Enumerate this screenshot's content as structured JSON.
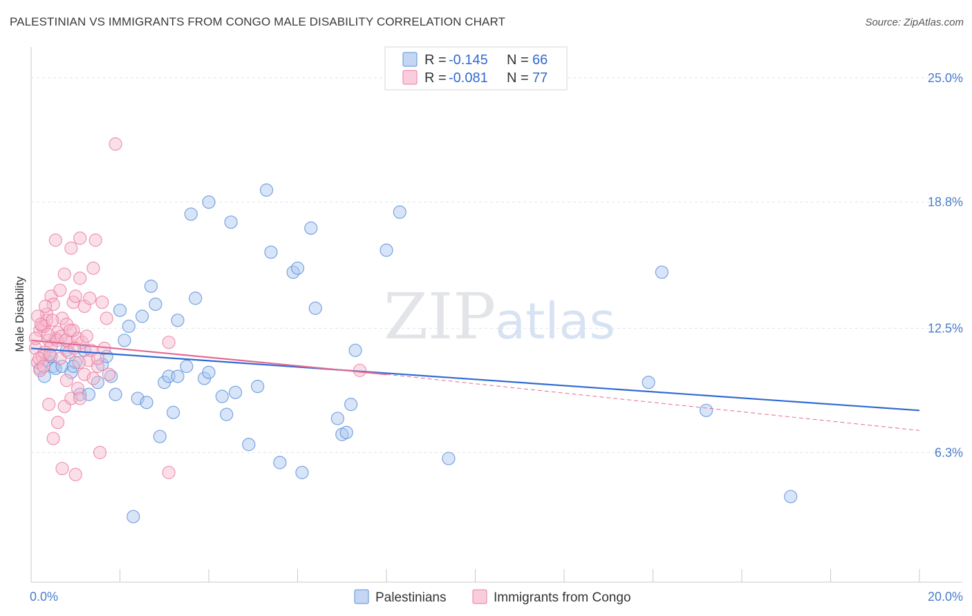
{
  "title": "PALESTINIAN VS IMMIGRANTS FROM CONGO MALE DISABILITY CORRELATION CHART",
  "source": "Source: ZipAtlas.com",
  "watermark": {
    "zip": "ZIP",
    "atlas": "atlas"
  },
  "colors": {
    "blue_fill": "#a9c6f0",
    "blue_stroke": "#5b8fd8",
    "blue_line": "#2f6ad1",
    "pink_fill": "#f6b8cc",
    "pink_stroke": "#e87ea1",
    "pink_line": "#e36a93",
    "tick_text": "#4a7cc9",
    "grid": "#dde3ea"
  },
  "chart_data": {
    "type": "scatter",
    "ylabel": "Male Disability",
    "xlim": [
      0,
      20
    ],
    "ylim": [
      0,
      26.2
    ],
    "y_ticks": [
      6.3,
      12.5,
      18.8,
      25.0
    ],
    "y_tick_labels": [
      "6.3%",
      "12.5%",
      "18.8%",
      "25.0%"
    ],
    "x_tick_labels": {
      "min": "0.0%",
      "max": "20.0%"
    },
    "legend": {
      "rows": [
        {
          "r_label": "R =",
          "r_value": "-0.145",
          "n_label": "N =",
          "n_value": "66"
        },
        {
          "r_label": "R =",
          "r_value": "-0.081",
          "n_label": "N =",
          "n_value": "77"
        }
      ]
    },
    "series": [
      {
        "name": "Palestinians",
        "color": "blue",
        "trend": {
          "x": [
            0,
            20
          ],
          "y": [
            11.5,
            8.4
          ]
        },
        "points": [
          [
            0.2,
            10.5
          ],
          [
            0.3,
            10.1
          ],
          [
            0.35,
            10.9
          ],
          [
            0.5,
            10.6
          ],
          [
            0.55,
            10.5
          ],
          [
            0.7,
            10.6
          ],
          [
            0.8,
            11.4
          ],
          [
            0.9,
            10.3
          ],
          [
            1.0,
            10.8
          ],
          [
            1.1,
            9.2
          ],
          [
            1.2,
            11.4
          ],
          [
            1.3,
            9.2
          ],
          [
            1.5,
            9.8
          ],
          [
            1.6,
            10.7
          ],
          [
            1.7,
            11.1
          ],
          [
            1.9,
            9.2
          ],
          [
            2.0,
            13.4
          ],
          [
            2.1,
            11.9
          ],
          [
            2.2,
            12.6
          ],
          [
            2.4,
            9.0
          ],
          [
            2.5,
            13.1
          ],
          [
            2.6,
            8.8
          ],
          [
            2.7,
            14.6
          ],
          [
            2.8,
            13.7
          ],
          [
            2.9,
            7.1
          ],
          [
            3.0,
            9.8
          ],
          [
            3.1,
            10.1
          ],
          [
            3.2,
            8.3
          ],
          [
            3.3,
            10.1
          ],
          [
            3.3,
            12.9
          ],
          [
            3.5,
            10.6
          ],
          [
            3.6,
            18.2
          ],
          [
            3.7,
            14.0
          ],
          [
            3.9,
            10.0
          ],
          [
            4.0,
            10.3
          ],
          [
            4.0,
            18.8
          ],
          [
            4.3,
            9.1
          ],
          [
            4.4,
            8.2
          ],
          [
            4.6,
            9.3
          ],
          [
            4.5,
            17.8
          ],
          [
            4.9,
            6.7
          ],
          [
            5.1,
            9.6
          ],
          [
            5.3,
            19.4
          ],
          [
            5.4,
            16.3
          ],
          [
            5.6,
            5.8
          ],
          [
            5.9,
            15.3
          ],
          [
            6.0,
            15.5
          ],
          [
            6.1,
            5.3
          ],
          [
            6.3,
            17.5
          ],
          [
            6.4,
            13.5
          ],
          [
            6.9,
            8.0
          ],
          [
            7.0,
            7.2
          ],
          [
            7.1,
            7.3
          ],
          [
            7.2,
            8.7
          ],
          [
            7.3,
            11.4
          ],
          [
            8.0,
            16.4
          ],
          [
            8.3,
            18.3
          ],
          [
            9.4,
            6.0
          ],
          [
            13.9,
            9.8
          ],
          [
            14.2,
            15.3
          ],
          [
            15.2,
            8.4
          ],
          [
            17.1,
            4.1
          ],
          [
            2.3,
            3.1
          ],
          [
            1.8,
            10.1
          ],
          [
            0.45,
            11.1
          ],
          [
            0.95,
            10.6
          ]
        ]
      },
      {
        "name": "Immigrants from Congo",
        "color": "pink",
        "trend": {
          "x": [
            0,
            8.0
          ],
          "y": [
            11.9,
            10.2
          ]
        },
        "trend_dashed": {
          "x": [
            8.0,
            20
          ],
          "y": [
            10.2,
            7.4
          ]
        },
        "points": [
          [
            0.1,
            11.5
          ],
          [
            0.15,
            10.8
          ],
          [
            0.2,
            12.4
          ],
          [
            0.25,
            11.1
          ],
          [
            0.3,
            12.6
          ],
          [
            0.35,
            13.2
          ],
          [
            0.4,
            11.9
          ],
          [
            0.45,
            14.1
          ],
          [
            0.5,
            13.7
          ],
          [
            0.55,
            12.0
          ],
          [
            0.6,
            12.3
          ],
          [
            0.65,
            14.4
          ],
          [
            0.7,
            13.0
          ],
          [
            0.75,
            15.2
          ],
          [
            0.8,
            12.7
          ],
          [
            0.85,
            11.8
          ],
          [
            0.9,
            16.5
          ],
          [
            0.95,
            13.8
          ],
          [
            1.0,
            14.1
          ],
          [
            1.05,
            12.0
          ],
          [
            1.1,
            15.0
          ],
          [
            1.15,
            11.8
          ],
          [
            1.2,
            13.6
          ],
          [
            1.3,
            10.9
          ],
          [
            1.35,
            11.4
          ],
          [
            1.4,
            15.5
          ],
          [
            1.45,
            16.9
          ],
          [
            1.5,
            10.6
          ],
          [
            1.6,
            13.8
          ],
          [
            1.7,
            13.0
          ],
          [
            1.75,
            10.2
          ],
          [
            0.2,
            10.4
          ],
          [
            0.3,
            11.3
          ],
          [
            0.4,
            8.7
          ],
          [
            0.5,
            7.0
          ],
          [
            0.6,
            7.8
          ],
          [
            0.7,
            5.5
          ],
          [
            0.75,
            8.6
          ],
          [
            0.9,
            9.0
          ],
          [
            1.0,
            5.2
          ],
          [
            1.05,
            9.5
          ],
          [
            1.1,
            9.0
          ],
          [
            1.2,
            10.2
          ],
          [
            1.4,
            10.0
          ],
          [
            1.55,
            6.3
          ],
          [
            1.9,
            21.7
          ],
          [
            3.1,
            11.8
          ],
          [
            3.1,
            5.3
          ],
          [
            7.4,
            10.4
          ],
          [
            0.55,
            16.9
          ],
          [
            1.1,
            17.0
          ],
          [
            0.25,
            12.6
          ],
          [
            0.35,
            12.9
          ],
          [
            0.45,
            11.6
          ],
          [
            0.65,
            11.0
          ],
          [
            0.8,
            9.9
          ],
          [
            0.85,
            11.3
          ],
          [
            0.95,
            12.4
          ],
          [
            0.1,
            12.0
          ],
          [
            0.18,
            11.0
          ],
          [
            0.28,
            10.6
          ],
          [
            0.38,
            12.2
          ],
          [
            0.48,
            12.9
          ],
          [
            0.58,
            11.9
          ],
          [
            0.68,
            12.1
          ],
          [
            0.78,
            11.9
          ],
          [
            0.88,
            12.4
          ],
          [
            0.98,
            11.5
          ],
          [
            1.08,
            10.8
          ],
          [
            1.25,
            12.1
          ],
          [
            1.5,
            11.0
          ],
          [
            0.15,
            13.1
          ],
          [
            0.22,
            12.7
          ],
          [
            0.32,
            13.6
          ],
          [
            0.42,
            11.2
          ],
          [
            1.32,
            14.0
          ],
          [
            1.65,
            11.5
          ]
        ]
      }
    ]
  }
}
